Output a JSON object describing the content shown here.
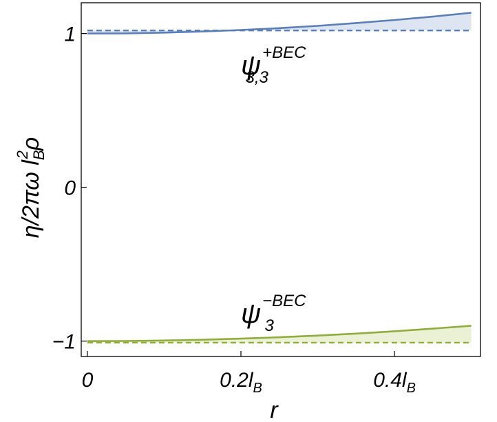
{
  "chart_data": {
    "type": "area",
    "title": "",
    "xlabel": "r",
    "ylabel": {
      "main": "η/2πω l",
      "sub": "B",
      "sup": "2",
      "tail": "ρ"
    },
    "xlim": [
      -0.008,
      0.512
    ],
    "ylim": [
      -1.1,
      1.2
    ],
    "grid": false,
    "x_ticks": [
      {
        "value": 0,
        "label": "0",
        "sub": ""
      },
      {
        "value": 0.2,
        "label": "0.2l",
        "sub": "B"
      },
      {
        "value": 0.4,
        "label": "0.4l",
        "sub": "B"
      }
    ],
    "y_ticks": [
      {
        "value": 1,
        "label": "1"
      },
      {
        "value": 0,
        "label": "0"
      },
      {
        "value": -1,
        "label": "−1"
      }
    ],
    "series": [
      {
        "color": "#5a7fb8",
        "fill": "#dde4f2",
        "x": [
          0,
          0.05,
          0.1,
          0.15,
          0.2,
          0.25,
          0.3,
          0.35,
          0.4,
          0.45,
          0.5
        ],
        "values": [
          1.0,
          1.001,
          1.006,
          1.013,
          1.023,
          1.035,
          1.05,
          1.068,
          1.088,
          1.11,
          1.135
        ],
        "baseline": 1.02
      },
      {
        "color": "#8fad3c",
        "fill": "#eaf1d4",
        "x": [
          0,
          0.05,
          0.1,
          0.15,
          0.2,
          0.25,
          0.3,
          0.35,
          0.4,
          0.45,
          0.5
        ],
        "values": [
          -1.0,
          -0.999,
          -0.996,
          -0.991,
          -0.984,
          -0.975,
          -0.964,
          -0.951,
          -0.936,
          -0.919,
          -0.9
        ],
        "baseline": -1.01
      }
    ],
    "annotations": [
      {
        "base": "ψ",
        "sub": "3,3",
        "sup": "+BEC"
      },
      {
        "base": "ψ",
        "sub": "3",
        "sup": "−BEC"
      }
    ]
  }
}
